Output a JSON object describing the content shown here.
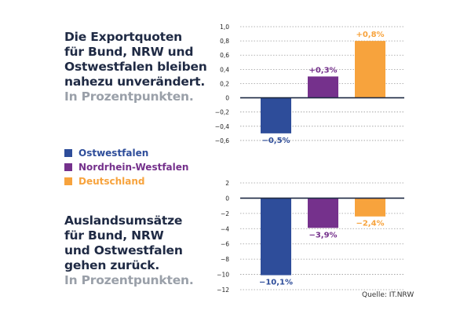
{
  "headline_1": {
    "main": [
      "Die Exportquoten",
      "für Bund, NRW und",
      "Ostwestfalen bleiben",
      "nahezu unverändert."
    ],
    "sub": "In Prozentpunkten."
  },
  "headline_2": {
    "main": [
      "Auslandsumsätze",
      "für Bund, NRW",
      "und Ostwestfalen",
      "gehen zurück."
    ],
    "sub": "In Prozentpunkten."
  },
  "legend": [
    {
      "label": "Ostwestfalen",
      "color": "#2e4d9a"
    },
    {
      "label": "Nordrhein-Westfalen",
      "color": "#75318c"
    },
    {
      "label": "Deutschland",
      "color": "#f7a33d"
    }
  ],
  "source": "Quelle: IT.NRW",
  "chart_data": [
    {
      "type": "bar",
      "categories": [
        "Ostwestfalen",
        "Nordrhein-Westfalen",
        "Deutschland"
      ],
      "values": [
        -0.5,
        0.3,
        0.8
      ],
      "value_labels": [
        "−0,5%",
        "+0,3%",
        "+0,8%"
      ],
      "colors": [
        "#2e4d9a",
        "#75318c",
        "#f7a33d"
      ],
      "ylim": [
        -0.7,
        1.0
      ],
      "yticks": [
        1.0,
        0.8,
        0.6,
        0.4,
        0.2,
        0,
        -0.2,
        -0.4,
        -0.6
      ],
      "ytick_labels": [
        "1,0",
        "0,8",
        "0,6",
        "0,4",
        "0,2",
        "0",
        "−0,2",
        "−0,4",
        "−0,6"
      ],
      "grid": true
    },
    {
      "type": "bar",
      "categories": [
        "Ostwestfalen",
        "Nordrhein-Westfalen",
        "Deutschland"
      ],
      "values": [
        -10.1,
        -3.9,
        -2.4
      ],
      "value_labels": [
        "−10,1%",
        "−3,9%",
        "−2,4%"
      ],
      "colors": [
        "#2e4d9a",
        "#75318c",
        "#f7a33d"
      ],
      "ylim": [
        -12,
        2
      ],
      "yticks": [
        2,
        0,
        -2,
        -4,
        -6,
        -8,
        -10,
        -12
      ],
      "ytick_labels": [
        "2",
        "0",
        "−2",
        "−4",
        "−6",
        "−8",
        "−10",
        "−12"
      ],
      "grid": true
    }
  ]
}
